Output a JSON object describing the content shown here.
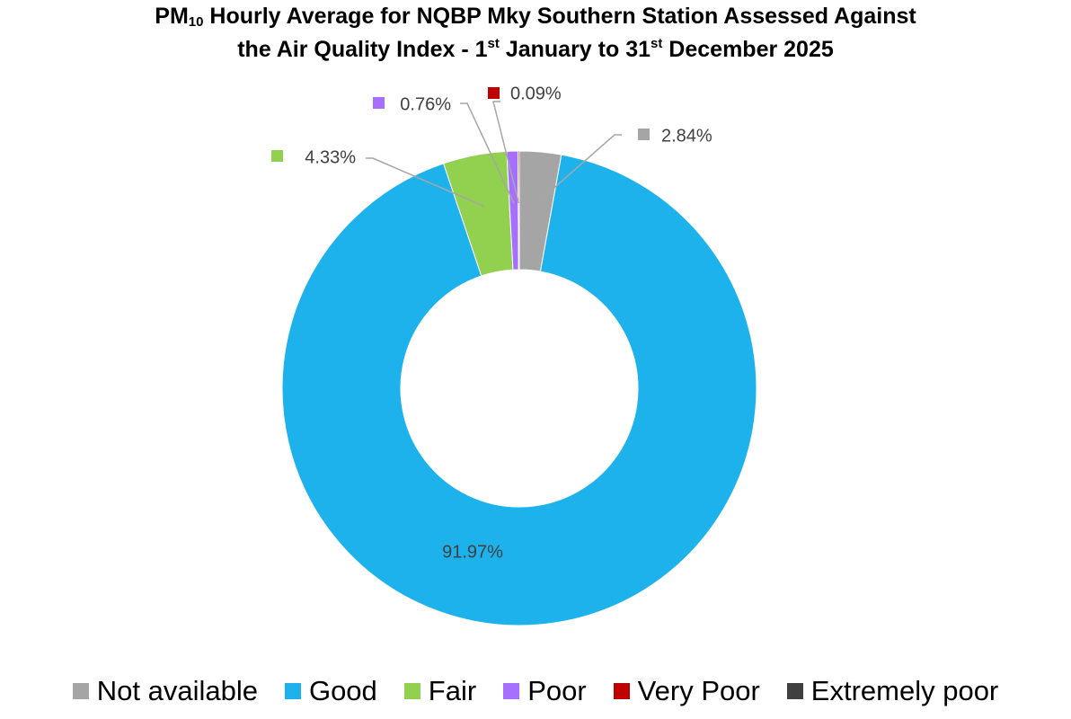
{
  "chart_data": {
    "type": "pie",
    "variant": "donut",
    "title": {
      "line1": {
        "pre": "PM",
        "sub": "10",
        "post": " Hourly Average for NQBP Mky Southern Station Assessed Against"
      },
      "line2": {
        "pre": "the Air Quality Index - 1",
        "sup1": "st",
        "mid": " January to 31",
        "sup2": "st",
        "post": " December 2025"
      }
    },
    "categories": [
      "Not available",
      "Good",
      "Fair",
      "Poor",
      "Very Poor",
      "Extremely poor"
    ],
    "values": [
      2.84,
      91.97,
      4.33,
      0.76,
      0.09,
      0
    ],
    "data_labels": [
      "2.84%",
      "91.97%",
      "4.33%",
      "0.76%",
      "0.09%",
      ""
    ],
    "colors": [
      "#a5a5a5",
      "#1eb2ec",
      "#92d050",
      "#a76ffd",
      "#c00000",
      "#404040"
    ],
    "legend_position": "bottom"
  }
}
